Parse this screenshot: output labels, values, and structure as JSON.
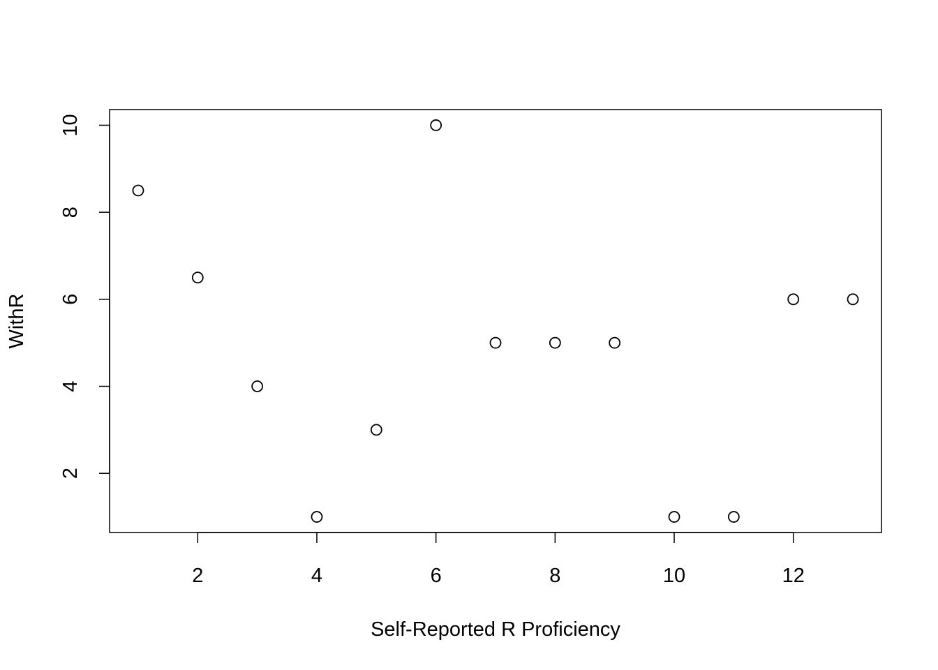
{
  "chart_data": {
    "type": "scatter",
    "title": "",
    "xlabel": "Self-Reported R Proficiency",
    "ylabel": "WithR",
    "xlim": [
      0.52,
      13.48
    ],
    "ylim": [
      0.64,
      10.36
    ],
    "x_ticks": [
      2,
      4,
      6,
      8,
      10,
      12
    ],
    "y_ticks": [
      2,
      4,
      6,
      8,
      10
    ],
    "grid": false,
    "legend": "none",
    "marker": "open-circle",
    "series": [
      {
        "x": [
          1,
          2,
          3,
          4,
          5,
          6,
          7,
          8,
          9,
          10,
          11,
          12,
          13
        ],
        "y": [
          8.5,
          6.5,
          4,
          1,
          3,
          10,
          5,
          5,
          5,
          1,
          1,
          6,
          6
        ]
      }
    ]
  }
}
